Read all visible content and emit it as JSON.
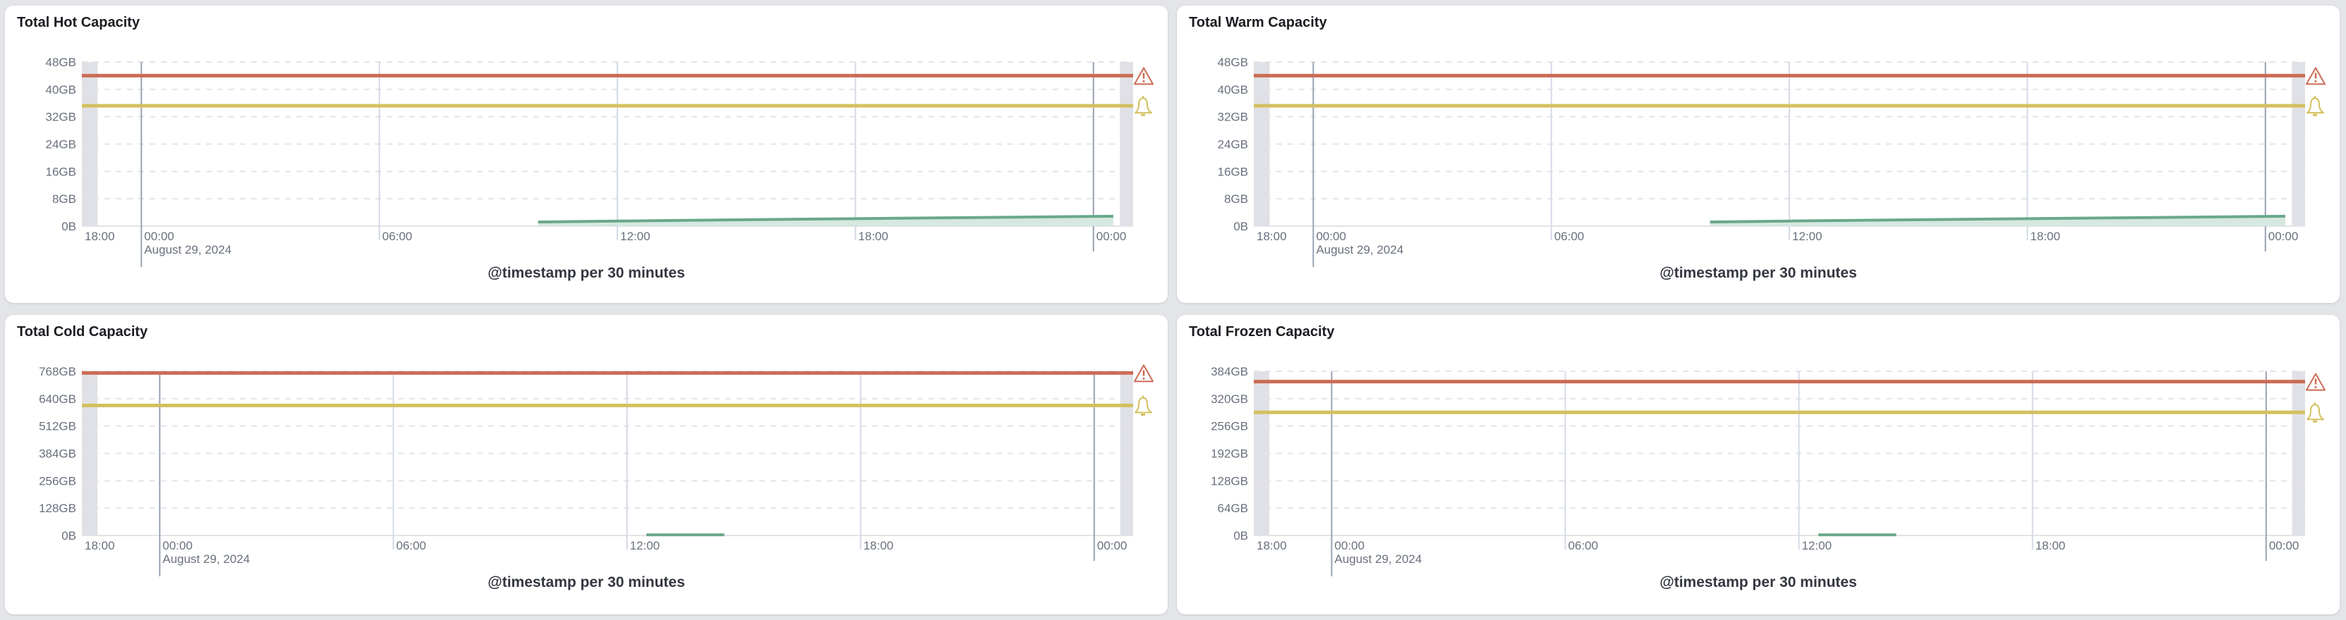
{
  "colors": {
    "critical": "#cc6b55",
    "warning": "#d3c15f",
    "series": "#6aa88a",
    "series_fill": "#d6e8e0",
    "out_of_range": "#e0e1e6"
  },
  "chart_data": [
    {
      "type": "area",
      "title": "Total Hot Capacity",
      "xlabel": "@timestamp per 30 minutes",
      "x_domain": [
        "2024-08-28T22:30",
        "2024-08-30T01:00"
      ],
      "x_ticks": [
        {
          "at": "2024-08-28T22:30",
          "label": "18:00"
        },
        {
          "at": "2024-08-29T00:00",
          "label": "00:00",
          "sublabel": "August 29, 2024",
          "major": true
        },
        {
          "at": "2024-08-29T06:00",
          "label": "06:00"
        },
        {
          "at": "2024-08-29T12:00",
          "label": "12:00"
        },
        {
          "at": "2024-08-29T18:00",
          "label": "18:00"
        },
        {
          "at": "2024-08-30T00:00",
          "label": "00:00",
          "major": true
        }
      ],
      "out_of_range": [
        [
          "2024-08-28T22:30",
          "2024-08-28T22:54"
        ],
        [
          "2024-08-30T00:40",
          "2024-08-30T01:00"
        ]
      ],
      "ylim": [
        0,
        48
      ],
      "y_ticks": [
        {
          "v": 0,
          "label": "0B"
        },
        {
          "v": 8,
          "label": "8GB"
        },
        {
          "v": 16,
          "label": "16GB"
        },
        {
          "v": 24,
          "label": "24GB"
        },
        {
          "v": 32,
          "label": "32GB"
        },
        {
          "v": 40,
          "label": "40GB"
        },
        {
          "v": 48,
          "label": "48GB"
        }
      ],
      "thresholds": {
        "critical": 44,
        "warning": 35.2
      },
      "series": [
        {
          "x": [
            "2024-08-29T10:00",
            "2024-08-29T12:00",
            "2024-08-29T18:00",
            "2024-08-30T00:30"
          ],
          "y": [
            1.2,
            1.5,
            2.2,
            2.9
          ]
        }
      ],
      "grid": true
    },
    {
      "type": "area",
      "title": "Total Warm Capacity",
      "xlabel": "@timestamp per 30 minutes",
      "x_domain": [
        "2024-08-28T22:30",
        "2024-08-30T01:00"
      ],
      "x_ticks": [
        {
          "at": "2024-08-28T22:30",
          "label": "18:00"
        },
        {
          "at": "2024-08-29T00:00",
          "label": "00:00",
          "sublabel": "August 29, 2024",
          "major": true
        },
        {
          "at": "2024-08-29T06:00",
          "label": "06:00"
        },
        {
          "at": "2024-08-29T12:00",
          "label": "12:00"
        },
        {
          "at": "2024-08-29T18:00",
          "label": "18:00"
        },
        {
          "at": "2024-08-30T00:00",
          "label": "00:00",
          "major": true
        }
      ],
      "out_of_range": [
        [
          "2024-08-28T22:30",
          "2024-08-28T22:54"
        ],
        [
          "2024-08-30T00:40",
          "2024-08-30T01:00"
        ]
      ],
      "ylim": [
        0,
        48
      ],
      "y_ticks": [
        {
          "v": 0,
          "label": "0B"
        },
        {
          "v": 8,
          "label": "8GB"
        },
        {
          "v": 16,
          "label": "16GB"
        },
        {
          "v": 24,
          "label": "24GB"
        },
        {
          "v": 32,
          "label": "32GB"
        },
        {
          "v": 40,
          "label": "40GB"
        },
        {
          "v": 48,
          "label": "48GB"
        }
      ],
      "thresholds": {
        "critical": 44,
        "warning": 35.2
      },
      "series": [
        {
          "x": [
            "2024-08-29T10:00",
            "2024-08-29T12:00",
            "2024-08-29T18:00",
            "2024-08-30T00:30"
          ],
          "y": [
            1.2,
            1.5,
            2.2,
            2.9
          ]
        }
      ],
      "grid": true
    },
    {
      "type": "area",
      "title": "Total Cold Capacity",
      "xlabel": "@timestamp per 30 minutes",
      "x_domain": [
        "2024-08-28T22:00",
        "2024-08-30T01:00"
      ],
      "x_ticks": [
        {
          "at": "2024-08-28T22:00",
          "label": "18:00"
        },
        {
          "at": "2024-08-29T00:00",
          "label": "00:00",
          "sublabel": "August 29, 2024",
          "major": true
        },
        {
          "at": "2024-08-29T06:00",
          "label": "06:00"
        },
        {
          "at": "2024-08-29T12:00",
          "label": "12:00"
        },
        {
          "at": "2024-08-29T18:00",
          "label": "18:00"
        },
        {
          "at": "2024-08-30T00:00",
          "label": "00:00",
          "major": true
        }
      ],
      "out_of_range": [
        [
          "2024-08-28T22:00",
          "2024-08-28T22:24"
        ],
        [
          "2024-08-30T00:40",
          "2024-08-30T01:00"
        ]
      ],
      "ylim": [
        0,
        768
      ],
      "y_ticks": [
        {
          "v": 0,
          "label": "0B"
        },
        {
          "v": 128,
          "label": "128GB"
        },
        {
          "v": 256,
          "label": "256GB"
        },
        {
          "v": 384,
          "label": "384GB"
        },
        {
          "v": 512,
          "label": "512GB"
        },
        {
          "v": 640,
          "label": "640GB"
        },
        {
          "v": 768,
          "label": "768GB"
        }
      ],
      "thresholds": {
        "critical": 760,
        "warning": 608
      },
      "series": [
        {
          "x": [
            "2024-08-29T12:30",
            "2024-08-29T14:30"
          ],
          "y": [
            3,
            3
          ]
        }
      ],
      "grid": true
    },
    {
      "type": "area",
      "title": "Total Frozen Capacity",
      "xlabel": "@timestamp per 30 minutes",
      "x_domain": [
        "2024-08-28T22:00",
        "2024-08-30T01:00"
      ],
      "x_ticks": [
        {
          "at": "2024-08-28T22:00",
          "label": "18:00"
        },
        {
          "at": "2024-08-29T00:00",
          "label": "00:00",
          "sublabel": "August 29, 2024",
          "major": true
        },
        {
          "at": "2024-08-29T06:00",
          "label": "06:00"
        },
        {
          "at": "2024-08-29T12:00",
          "label": "12:00"
        },
        {
          "at": "2024-08-29T18:00",
          "label": "18:00"
        },
        {
          "at": "2024-08-30T00:00",
          "label": "00:00",
          "major": true
        }
      ],
      "out_of_range": [
        [
          "2024-08-28T22:00",
          "2024-08-28T22:24"
        ],
        [
          "2024-08-30T00:40",
          "2024-08-30T01:00"
        ]
      ],
      "ylim": [
        0,
        384
      ],
      "y_ticks": [
        {
          "v": 0,
          "label": "0B"
        },
        {
          "v": 64,
          "label": "64GB"
        },
        {
          "v": 128,
          "label": "128GB"
        },
        {
          "v": 192,
          "label": "192GB"
        },
        {
          "v": 256,
          "label": "256GB"
        },
        {
          "v": 320,
          "label": "320GB"
        },
        {
          "v": 384,
          "label": "384GB"
        }
      ],
      "thresholds": {
        "critical": 360,
        "warning": 288
      },
      "series": [
        {
          "x": [
            "2024-08-29T12:30",
            "2024-08-29T14:30"
          ],
          "y": [
            1.5,
            1.5
          ]
        }
      ],
      "grid": true
    }
  ]
}
